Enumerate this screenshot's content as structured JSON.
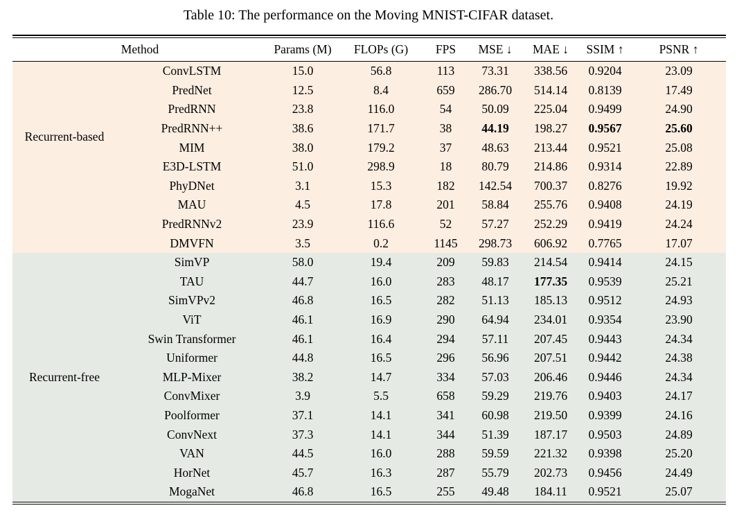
{
  "caption": "Table 10: The performance on the Moving MNIST-CIFAR dataset.",
  "table": {
    "method_header": "Method",
    "metric_headers": [
      "Params (M)",
      "FLOPs (G)",
      "FPS",
      "MSE ↓",
      "MAE ↓",
      "SSIM ↑",
      "PSNR ↑"
    ],
    "groups": [
      {
        "label": "Recurrent-based",
        "bg": "#fceee1",
        "rows": [
          {
            "method": "ConvLSTM",
            "values": [
              "15.0",
              "56.8",
              "113",
              "73.31",
              "338.56",
              "0.9204",
              "23.09"
            ],
            "bold": []
          },
          {
            "method": "PredNet",
            "values": [
              "12.5",
              "8.4",
              "659",
              "286.70",
              "514.14",
              "0.8139",
              "17.49"
            ],
            "bold": []
          },
          {
            "method": "PredRNN",
            "values": [
              "23.8",
              "116.0",
              "54",
              "50.09",
              "225.04",
              "0.9499",
              "24.90"
            ],
            "bold": []
          },
          {
            "method": "PredRNN++",
            "values": [
              "38.6",
              "171.7",
              "38",
              "44.19",
              "198.27",
              "0.9567",
              "25.60"
            ],
            "bold": [
              3,
              5,
              6
            ]
          },
          {
            "method": "MIM",
            "values": [
              "38.0",
              "179.2",
              "37",
              "48.63",
              "213.44",
              "0.9521",
              "25.08"
            ],
            "bold": []
          },
          {
            "method": "E3D-LSTM",
            "values": [
              "51.0",
              "298.9",
              "18",
              "80.79",
              "214.86",
              "0.9314",
              "22.89"
            ],
            "bold": []
          },
          {
            "method": "PhyDNet",
            "values": [
              "3.1",
              "15.3",
              "182",
              "142.54",
              "700.37",
              "0.8276",
              "19.92"
            ],
            "bold": []
          },
          {
            "method": "MAU",
            "values": [
              "4.5",
              "17.8",
              "201",
              "58.84",
              "255.76",
              "0.9408",
              "24.19"
            ],
            "bold": []
          },
          {
            "method": "PredRNNv2",
            "values": [
              "23.9",
              "116.6",
              "52",
              "57.27",
              "252.29",
              "0.9419",
              "24.24"
            ],
            "bold": []
          },
          {
            "method": "DMVFN",
            "values": [
              "3.5",
              "0.2",
              "1145",
              "298.73",
              "606.92",
              "0.7765",
              "17.07"
            ],
            "bold": []
          }
        ]
      },
      {
        "label": "Recurrent-free",
        "bg": "#e5ebe4",
        "rows": [
          {
            "method": "SimVP",
            "values": [
              "58.0",
              "19.4",
              "209",
              "59.83",
              "214.54",
              "0.9414",
              "24.15"
            ],
            "bold": []
          },
          {
            "method": "TAU",
            "values": [
              "44.7",
              "16.0",
              "283",
              "48.17",
              "177.35",
              "0.9539",
              "25.21"
            ],
            "bold": [
              4
            ]
          },
          {
            "method": "SimVPv2",
            "values": [
              "46.8",
              "16.5",
              "282",
              "51.13",
              "185.13",
              "0.9512",
              "24.93"
            ],
            "bold": []
          },
          {
            "method": "ViT",
            "values": [
              "46.1",
              "16.9",
              "290",
              "64.94",
              "234.01",
              "0.9354",
              "23.90"
            ],
            "bold": []
          },
          {
            "method": "Swin Transformer",
            "values": [
              "46.1",
              "16.4",
              "294",
              "57.11",
              "207.45",
              "0.9443",
              "24.34"
            ],
            "bold": []
          },
          {
            "method": "Uniformer",
            "values": [
              "44.8",
              "16.5",
              "296",
              "56.96",
              "207.51",
              "0.9442",
              "24.38"
            ],
            "bold": []
          },
          {
            "method": "MLP-Mixer",
            "values": [
              "38.2",
              "14.7",
              "334",
              "57.03",
              "206.46",
              "0.9446",
              "24.34"
            ],
            "bold": []
          },
          {
            "method": "ConvMixer",
            "values": [
              "3.9",
              "5.5",
              "658",
              "59.29",
              "219.76",
              "0.9403",
              "24.17"
            ],
            "bold": []
          },
          {
            "method": "Poolformer",
            "values": [
              "37.1",
              "14.1",
              "341",
              "60.98",
              "219.50",
              "0.9399",
              "24.16"
            ],
            "bold": []
          },
          {
            "method": "ConvNext",
            "values": [
              "37.3",
              "14.1",
              "344",
              "51.39",
              "187.17",
              "0.9503",
              "24.89"
            ],
            "bold": []
          },
          {
            "method": "VAN",
            "values": [
              "44.5",
              "16.0",
              "288",
              "59.59",
              "221.32",
              "0.9398",
              "25.20"
            ],
            "bold": []
          },
          {
            "method": "HorNet",
            "values": [
              "45.7",
              "16.3",
              "287",
              "55.79",
              "202.73",
              "0.9456",
              "24.49"
            ],
            "bold": []
          },
          {
            "method": "MogaNet",
            "values": [
              "46.8",
              "16.5",
              "255",
              "49.48",
              "184.11",
              "0.9521",
              "25.07"
            ],
            "bold": []
          }
        ]
      }
    ]
  },
  "colors": {
    "recurrent_based_bg": "#fceee1",
    "recurrent_free_bg": "#e5ebe4",
    "rule": "#000000",
    "text": "#000000"
  }
}
